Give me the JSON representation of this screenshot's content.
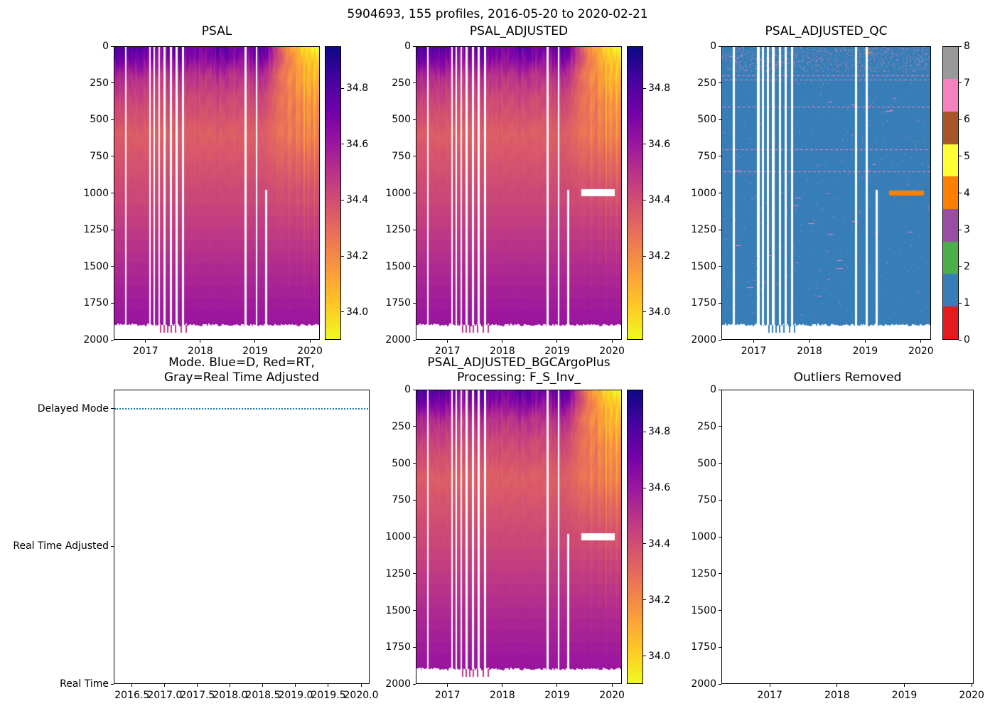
{
  "figure": {
    "suptitle": "5904693, 155 profiles, 2016-05-20 to 2020-02-21"
  },
  "chart_data": [
    {
      "id": "psal",
      "type": "heatmap",
      "title": "PSAL",
      "x_range": [
        2016.42,
        2020.18
      ],
      "x_ticks": [
        2017,
        2018,
        2019,
        2020
      ],
      "x_tick_labels": [
        "2017",
        "2018",
        "2019",
        "2020"
      ],
      "y_range": [
        0,
        2000
      ],
      "y_axis_inverted": true,
      "y_ticks": [
        0,
        250,
        500,
        750,
        1000,
        1250,
        1500,
        1750,
        2000
      ],
      "y_tick_labels": [
        "0",
        "250",
        "500",
        "750",
        "1000",
        "1250",
        "1500",
        "1750",
        "2000"
      ],
      "colorbar": {
        "cmap": "plasma_r",
        "vmin": 33.9,
        "vmax": 34.95,
        "ticks": [
          34.8,
          34.6,
          34.4,
          34.2,
          34.0
        ],
        "tick_labels": [
          "34.8",
          "34.6",
          "34.4",
          "34.2",
          "34.0"
        ]
      },
      "white_band": false
    },
    {
      "id": "psal_adjusted",
      "type": "heatmap",
      "title": "PSAL_ADJUSTED",
      "x_range": [
        2016.42,
        2020.18
      ],
      "x_ticks": [
        2017,
        2018,
        2019,
        2020
      ],
      "x_tick_labels": [
        "2017",
        "2018",
        "2019",
        "2020"
      ],
      "y_range": [
        0,
        2000
      ],
      "y_axis_inverted": true,
      "y_ticks": [
        0,
        250,
        500,
        750,
        1000,
        1250,
        1500,
        1750,
        2000
      ],
      "y_tick_labels": [
        "0",
        "250",
        "500",
        "750",
        "1000",
        "1250",
        "1500",
        "1750",
        "2000"
      ],
      "colorbar": {
        "cmap": "plasma_r",
        "vmin": 33.9,
        "vmax": 34.95,
        "ticks": [
          34.8,
          34.6,
          34.4,
          34.2,
          34.0
        ],
        "tick_labels": [
          "34.8",
          "34.6",
          "34.4",
          "34.2",
          "34.0"
        ]
      },
      "white_band": true
    },
    {
      "id": "psal_adjusted_qc",
      "type": "heatmap-qc",
      "title": "PSAL_ADJUSTED_QC",
      "x_range": [
        2016.42,
        2020.18
      ],
      "x_ticks": [
        2017,
        2018,
        2019,
        2020
      ],
      "x_tick_labels": [
        "2017",
        "2018",
        "2019",
        "2020"
      ],
      "y_range": [
        0,
        2000
      ],
      "y_axis_inverted": true,
      "y_ticks": [
        0,
        250,
        500,
        750,
        1000,
        1250,
        1500,
        1750,
        2000
      ],
      "y_tick_labels": [
        "0",
        "250",
        "500",
        "750",
        "1000",
        "1250",
        "1500",
        "1750",
        "2000"
      ],
      "colorbar": {
        "cmap": "Set1-discrete",
        "vmin": 0,
        "vmax": 8,
        "ticks": [
          8,
          7,
          6,
          5,
          4,
          3,
          2,
          1,
          0
        ],
        "tick_labels": [
          "8",
          "7",
          "6",
          "5",
          "4",
          "3",
          "2",
          "1",
          "0"
        ]
      }
    },
    {
      "id": "mode",
      "type": "scatter",
      "title": "Mode. Blue=D, Red=RT,\nGray=Real Time Adjusted",
      "x_range": [
        2016.22,
        2020.13
      ],
      "x_ticks": [
        2016.5,
        2017.0,
        2017.5,
        2018.0,
        2018.5,
        2019.0,
        2019.5,
        2020.0
      ],
      "x_tick_labels": [
        "2016.5",
        "2017.0",
        "2017.5",
        "2018.0",
        "2018.5",
        "2019.0",
        "2019.5",
        "2020.0"
      ],
      "y_categories": [
        "Delayed Mode",
        "Real Time Adjusted",
        "Real Time"
      ],
      "y_category_pos": [
        0.065,
        0.532,
        1.0
      ],
      "series": [
        {
          "name": "Delayed Mode",
          "color": "#1f77b4",
          "style": "dotted-line",
          "y": "Delayed Mode",
          "x_start": 2016.42,
          "x_end": 2020.15
        }
      ]
    },
    {
      "id": "psal_adjusted_bgc",
      "type": "heatmap",
      "title": "PSAL_ADJUSTED_BGCArgoPlus\nProcessing: F_S_Inv_",
      "x_range": [
        2016.42,
        2020.18
      ],
      "x_ticks": [
        2017,
        2018,
        2019,
        2020
      ],
      "x_tick_labels": [
        "2017",
        "2018",
        "2019",
        "2020"
      ],
      "y_range": [
        0,
        2000
      ],
      "y_axis_inverted": true,
      "y_ticks": [
        0,
        250,
        500,
        750,
        1000,
        1250,
        1500,
        1750,
        2000
      ],
      "y_tick_labels": [
        "0",
        "250",
        "500",
        "750",
        "1000",
        "1250",
        "1500",
        "1750",
        "2000"
      ],
      "colorbar": {
        "cmap": "plasma_r",
        "vmin": 33.9,
        "vmax": 34.95,
        "ticks": [
          34.8,
          34.6,
          34.4,
          34.2,
          34.0
        ],
        "tick_labels": [
          "34.8",
          "34.6",
          "34.4",
          "34.2",
          "34.0"
        ]
      },
      "white_band": true
    },
    {
      "id": "outliers",
      "type": "empty",
      "title": "Outliers Removed",
      "x_range": [
        2016.28,
        2020.03
      ],
      "x_ticks": [
        2017,
        2018,
        2019,
        2020
      ],
      "x_tick_labels": [
        "2017",
        "2018",
        "2019",
        "2020"
      ],
      "y_range": [
        0,
        2000
      ],
      "y_axis_inverted": true,
      "y_ticks": [
        0,
        250,
        500,
        750,
        1000,
        1250,
        1500,
        1750,
        2000
      ],
      "y_tick_labels": [
        "0",
        "250",
        "500",
        "750",
        "1000",
        "1250",
        "1500",
        "1750",
        "2000"
      ]
    }
  ],
  "field_model": {
    "description": "Approximate PSAL(depth,time) field read from the plotted heatmaps; salinity in PSU, depth in dbar, time in decimal years",
    "profile_count": 155,
    "max_depth": 1903,
    "depth_profile": [
      [
        0,
        34.73
      ],
      [
        80,
        34.66
      ],
      [
        200,
        34.5
      ],
      [
        350,
        34.42
      ],
      [
        600,
        34.34
      ],
      [
        900,
        34.4
      ],
      [
        1200,
        34.47
      ],
      [
        1500,
        34.54
      ],
      [
        1800,
        34.6
      ],
      [
        2000,
        34.63
      ]
    ],
    "early_salty": {
      "end": 2016.85,
      "amplitude": 0.18,
      "depth_scale": 260
    },
    "late_freshening": {
      "start": 2019.15,
      "ramp_years": 0.75,
      "amplitude": -0.82,
      "depth_scale": 300
    },
    "noise": {
      "column_amp": 0.13,
      "depth_scale": 380
    },
    "gap_times": [
      2016.63,
      2017.07,
      2017.15,
      2017.24,
      2017.34,
      2017.46,
      2017.56,
      2017.68,
      2018.83,
      2019.03
    ],
    "partial_gap": {
      "time": 2019.21,
      "below_depth": 980
    },
    "adjusted_white_band": {
      "time_range": [
        2019.45,
        2020.06
      ],
      "depth_range": [
        975,
        1022
      ]
    },
    "deep_spikes": [
      2017.26,
      2017.32,
      2017.38,
      2017.45,
      2017.53,
      2017.63,
      2017.72
    ]
  },
  "qc_model": {
    "background_flag": 1,
    "flag_colors": [
      "#e41a1c",
      "#377eb8",
      "#4daf4a",
      "#984ea3",
      "#ff7f00",
      "#ffff33",
      "#a65628",
      "#f781bf",
      "#999999"
    ],
    "pink_rows_depths": [
      193,
      222,
      407,
      700,
      853
    ],
    "orange_band": {
      "flag": 4,
      "time_range": [
        2019.44,
        2020.07
      ],
      "depth_range": [
        983,
        1016
      ]
    },
    "orange_patch": {
      "flag": 4,
      "time_range": [
        2019.0,
        2019.07
      ],
      "depth_range": [
        15,
        55
      ]
    },
    "speckle_flags": [
      7,
      8
    ],
    "speckle_count": 1400
  }
}
